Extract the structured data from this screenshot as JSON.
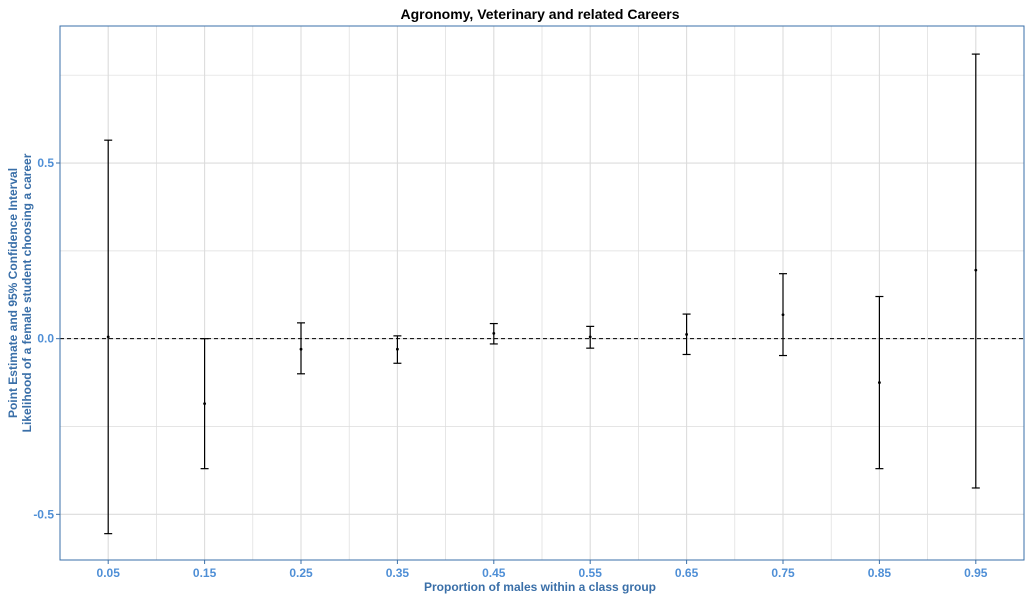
{
  "chart_data": {
    "type": "errorbar",
    "title": "Agronomy, Veterinary and related Careers",
    "xlabel": "Proportion of males within a class group",
    "ylabel": [
      "Point Estimate and 95% Confidence Interval",
      "Likelihood of a female student choosing a career"
    ],
    "x_ticks": [
      "0.05",
      "0.15",
      "0.25",
      "0.35",
      "0.45",
      "0.55",
      "0.65",
      "0.75",
      "0.85",
      "0.95"
    ],
    "y_ticks": [
      {
        "value": -0.5,
        "label": "-0.5"
      },
      {
        "value": 0.0,
        "label": "0.0"
      },
      {
        "value": 0.5,
        "label": "0.5"
      }
    ],
    "xlim": [
      0.0,
      1.0
    ],
    "ylim": [
      -0.63,
      0.89
    ],
    "reference_line": 0.0,
    "grid": true,
    "points": [
      {
        "x": 0.05,
        "estimate": 0.005,
        "lower": -0.555,
        "upper": 0.565
      },
      {
        "x": 0.15,
        "estimate": -0.185,
        "lower": -0.37,
        "upper": 0.0
      },
      {
        "x": 0.25,
        "estimate": -0.03,
        "lower": -0.1,
        "upper": 0.045
      },
      {
        "x": 0.35,
        "estimate": -0.03,
        "lower": -0.07,
        "upper": 0.008
      },
      {
        "x": 0.45,
        "estimate": 0.015,
        "lower": -0.015,
        "upper": 0.043
      },
      {
        "x": 0.55,
        "estimate": 0.005,
        "lower": -0.027,
        "upper": 0.035
      },
      {
        "x": 0.65,
        "estimate": 0.012,
        "lower": -0.045,
        "upper": 0.07
      },
      {
        "x": 0.75,
        "estimate": 0.068,
        "lower": -0.048,
        "upper": 0.185
      },
      {
        "x": 0.85,
        "estimate": -0.125,
        "lower": -0.37,
        "upper": 0.12
      },
      {
        "x": 0.95,
        "estimate": 0.195,
        "lower": -0.425,
        "upper": 0.81
      }
    ],
    "colors": {
      "axis_text": "#4f8fd6",
      "axis_title": "#3a6fa8",
      "panel_border": "#3a6fa8",
      "grid": "#dcdcdc",
      "bars": "#000000"
    }
  }
}
